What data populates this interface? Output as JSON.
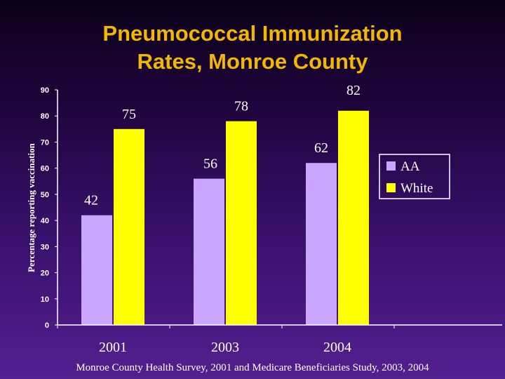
{
  "title_lines": [
    "Pneumococcal Immunization",
    "Rates, Monroe County"
  ],
  "footer": "Monroe County Health Survey, 2001 and Medicare Beneficiaries Study, 2003, 2004",
  "colors": {
    "aa": "#c9a6ff",
    "white": "#ffff00",
    "axis": "#ffffff"
  },
  "chart_data": {
    "type": "bar",
    "title": "Pneumococcal Immunization Rates, Monroe County",
    "xlabel": "",
    "ylabel": "Percentage reporting vaccination",
    "categories": [
      "2001",
      "2003",
      "2004"
    ],
    "series": [
      {
        "name": "AA",
        "values": [
          42,
          56,
          62
        ]
      },
      {
        "name": "White",
        "values": [
          75,
          78,
          82
        ]
      }
    ],
    "ylim": [
      0,
      90
    ],
    "yticks": [
      0,
      10,
      20,
      30,
      40,
      50,
      60,
      70,
      80,
      90
    ],
    "legend": [
      "AA",
      "White"
    ],
    "legend_position": "right"
  }
}
